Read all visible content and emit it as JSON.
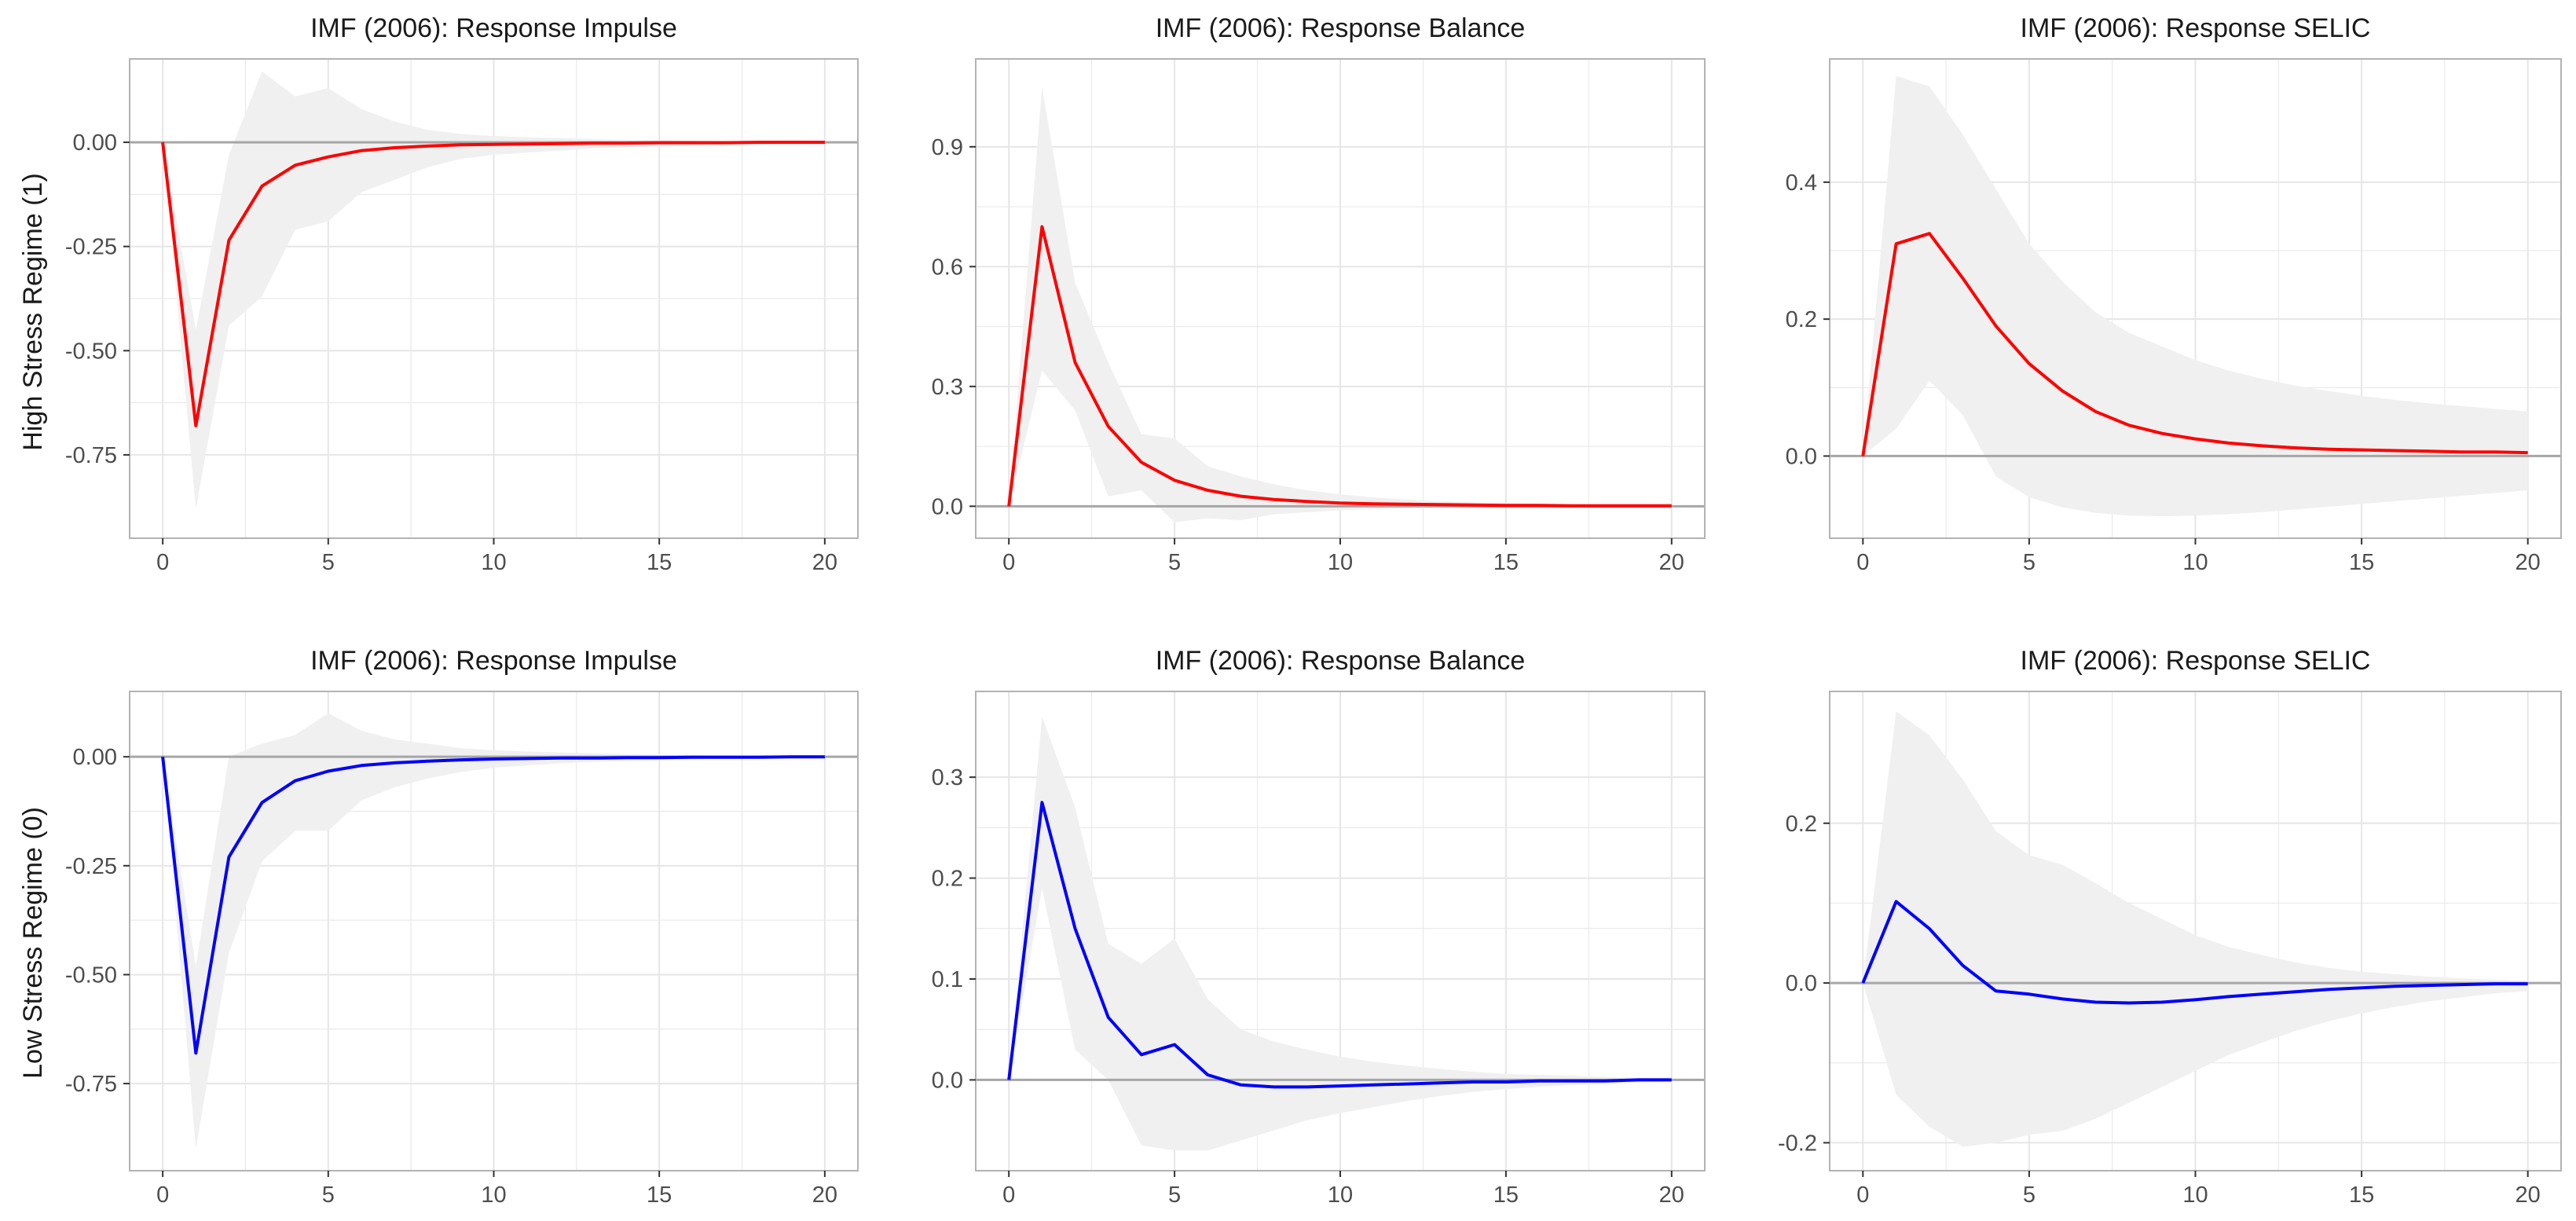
{
  "figure": {
    "row_labels": [
      "High Stress Regime (1)",
      "Low Stress Regime (0)"
    ]
  },
  "colors": {
    "high": "#ff0000",
    "low": "#0000ff",
    "band": "#f0f0f0",
    "zero_line": "#a6a6a6",
    "grid": "#e6e6e6",
    "panel_border": "#b3b3b3"
  },
  "chart_data": [
    {
      "type": "line",
      "row": 0,
      "col": 0,
      "title": "IMF (2006): Response Impulse",
      "xlabel": "",
      "ylabel": "High Stress Regime (1)",
      "color": "high",
      "xlim": [
        -1,
        21
      ],
      "ylim": [
        -0.95,
        0.2
      ],
      "xticks": [
        0,
        5,
        10,
        15,
        20
      ],
      "xtick_labels": [
        "0",
        "5",
        "10",
        "15",
        "20"
      ],
      "yticks": [
        0,
        -0.25,
        -0.5,
        -0.75
      ],
      "ytick_labels": [
        "0.00",
        "-0.25",
        "-0.50",
        "-0.75"
      ],
      "x": [
        0,
        1,
        2,
        3,
        4,
        5,
        6,
        7,
        8,
        9,
        10,
        11,
        12,
        13,
        14,
        15,
        16,
        17,
        18,
        19,
        20
      ],
      "y": [
        0,
        -0.68,
        -0.235,
        -0.105,
        -0.055,
        -0.035,
        -0.02,
        -0.013,
        -0.009,
        -0.006,
        -0.005,
        -0.004,
        -0.003,
        -0.002,
        -0.002,
        -0.001,
        -0.001,
        -0.001,
        0,
        0,
        0
      ],
      "lower": [
        0,
        -0.88,
        -0.44,
        -0.37,
        -0.21,
        -0.19,
        -0.12,
        -0.09,
        -0.06,
        -0.04,
        -0.03,
        -0.025,
        -0.02,
        -0.015,
        -0.012,
        -0.01,
        -0.008,
        -0.006,
        -0.005,
        -0.004,
        -0.003
      ],
      "upper": [
        0,
        -0.45,
        -0.03,
        0.17,
        0.11,
        0.13,
        0.08,
        0.05,
        0.03,
        0.02,
        0.015,
        0.012,
        0.01,
        0.008,
        0.006,
        0.005,
        0.004,
        0.003,
        0.003,
        0.002,
        0.002
      ]
    },
    {
      "type": "line",
      "row": 0,
      "col": 1,
      "title": "IMF (2006): Response Balance",
      "xlabel": "",
      "ylabel": "",
      "color": "high",
      "xlim": [
        -1,
        21
      ],
      "ylim": [
        -0.08,
        1.12
      ],
      "xticks": [
        0,
        5,
        10,
        15,
        20
      ],
      "xtick_labels": [
        "0",
        "5",
        "10",
        "15",
        "20"
      ],
      "yticks": [
        0,
        0.3,
        0.6,
        0.9
      ],
      "ytick_labels": [
        "0.0",
        "0.3",
        "0.6",
        "0.9"
      ],
      "x": [
        0,
        1,
        2,
        3,
        4,
        5,
        6,
        7,
        8,
        9,
        10,
        11,
        12,
        13,
        14,
        15,
        16,
        17,
        18,
        19,
        20
      ],
      "y": [
        0,
        0.7,
        0.36,
        0.2,
        0.11,
        0.065,
        0.04,
        0.025,
        0.017,
        0.012,
        0.008,
        0.006,
        0.005,
        0.004,
        0.003,
        0.002,
        0.002,
        0.001,
        0.001,
        0.001,
        0.001
      ],
      "lower": [
        0,
        0.34,
        0.24,
        0.025,
        0.04,
        -0.04,
        -0.03,
        -0.035,
        -0.02,
        -0.015,
        -0.01,
        -0.008,
        -0.006,
        -0.005,
        -0.004,
        -0.003,
        -0.003,
        -0.002,
        -0.002,
        -0.002,
        -0.001
      ],
      "upper": [
        0,
        1.05,
        0.56,
        0.36,
        0.18,
        0.17,
        0.1,
        0.075,
        0.055,
        0.04,
        0.03,
        0.022,
        0.017,
        0.013,
        0.01,
        0.008,
        0.006,
        0.005,
        0.004,
        0.003,
        0.003
      ]
    },
    {
      "type": "line",
      "row": 0,
      "col": 2,
      "title": "IMF (2006): Response SELIC",
      "xlabel": "",
      "ylabel": "",
      "color": "high",
      "xlim": [
        -1,
        21
      ],
      "ylim": [
        -0.12,
        0.58
      ],
      "xticks": [
        0,
        5,
        10,
        15,
        20
      ],
      "xtick_labels": [
        "0",
        "5",
        "10",
        "15",
        "20"
      ],
      "yticks": [
        0,
        0.2,
        0.4
      ],
      "ytick_labels": [
        "0.0",
        "0.2",
        "0.4"
      ],
      "x": [
        0,
        1,
        2,
        3,
        4,
        5,
        6,
        7,
        8,
        9,
        10,
        11,
        12,
        13,
        14,
        15,
        16,
        17,
        18,
        19,
        20
      ],
      "y": [
        0,
        0.31,
        0.325,
        0.26,
        0.19,
        0.135,
        0.095,
        0.065,
        0.045,
        0.033,
        0.025,
        0.019,
        0.015,
        0.012,
        0.01,
        0.009,
        0.008,
        0.007,
        0.006,
        0.006,
        0.005
      ],
      "lower": [
        0,
        0.04,
        0.11,
        0.06,
        -0.03,
        -0.06,
        -0.075,
        -0.083,
        -0.087,
        -0.088,
        -0.087,
        -0.085,
        -0.082,
        -0.078,
        -0.074,
        -0.07,
        -0.066,
        -0.062,
        -0.058,
        -0.054,
        -0.05
      ],
      "upper": [
        0,
        0.555,
        0.54,
        0.47,
        0.39,
        0.31,
        0.255,
        0.21,
        0.18,
        0.16,
        0.14,
        0.125,
        0.113,
        0.103,
        0.095,
        0.088,
        0.082,
        0.077,
        0.073,
        0.069,
        0.065
      ]
    },
    {
      "type": "line",
      "row": 1,
      "col": 0,
      "title": "IMF (2006): Response Impulse",
      "xlabel": "",
      "ylabel": "Low Stress Regime (0)",
      "color": "low",
      "xlim": [
        -1,
        21
      ],
      "ylim": [
        -0.95,
        0.15
      ],
      "xticks": [
        0,
        5,
        10,
        15,
        20
      ],
      "xtick_labels": [
        "0",
        "5",
        "10",
        "15",
        "20"
      ],
      "yticks": [
        0,
        -0.25,
        -0.5,
        -0.75
      ],
      "ytick_labels": [
        "0.00",
        "-0.25",
        "-0.50",
        "-0.75"
      ],
      "x": [
        0,
        1,
        2,
        3,
        4,
        5,
        6,
        7,
        8,
        9,
        10,
        11,
        12,
        13,
        14,
        15,
        16,
        17,
        18,
        19,
        20
      ],
      "y": [
        0,
        -0.68,
        -0.23,
        -0.105,
        -0.055,
        -0.033,
        -0.02,
        -0.014,
        -0.01,
        -0.007,
        -0.005,
        -0.004,
        -0.003,
        -0.003,
        -0.002,
        -0.002,
        -0.001,
        -0.001,
        -0.001,
        0,
        0
      ],
      "lower": [
        0,
        -0.9,
        -0.45,
        -0.24,
        -0.17,
        -0.17,
        -0.1,
        -0.07,
        -0.05,
        -0.035,
        -0.025,
        -0.02,
        -0.015,
        -0.012,
        -0.01,
        -0.008,
        -0.006,
        -0.005,
        -0.004,
        -0.003,
        -0.002
      ],
      "upper": [
        0,
        -0.48,
        0,
        0.03,
        0.05,
        0.1,
        0.06,
        0.04,
        0.03,
        0.02,
        0.015,
        0.012,
        0.01,
        0.008,
        0.006,
        0.005,
        0.004,
        0.003,
        0.003,
        0.002,
        0.002
      ]
    },
    {
      "type": "line",
      "row": 1,
      "col": 1,
      "title": "IMF (2006): Response Balance",
      "xlabel": "",
      "ylabel": "",
      "color": "low",
      "xlim": [
        -1,
        21
      ],
      "ylim": [
        -0.09,
        0.385
      ],
      "xticks": [
        0,
        5,
        10,
        15,
        20
      ],
      "xtick_labels": [
        "0",
        "5",
        "10",
        "15",
        "20"
      ],
      "yticks": [
        0,
        0.1,
        0.2,
        0.3
      ],
      "ytick_labels": [
        "0.0",
        "0.1",
        "0.2",
        "0.3"
      ],
      "x": [
        0,
        1,
        2,
        3,
        4,
        5,
        6,
        7,
        8,
        9,
        10,
        11,
        12,
        13,
        14,
        15,
        16,
        17,
        18,
        19,
        20
      ],
      "y": [
        0,
        0.275,
        0.15,
        0.062,
        0.025,
        0.035,
        0.005,
        -0.005,
        -0.007,
        -0.007,
        -0.006,
        -0.005,
        -0.004,
        -0.003,
        -0.002,
        -0.002,
        -0.001,
        -0.001,
        -0.001,
        0,
        0
      ],
      "lower": [
        0,
        0.19,
        0.03,
        0,
        -0.065,
        -0.07,
        -0.07,
        -0.06,
        -0.05,
        -0.04,
        -0.033,
        -0.027,
        -0.021,
        -0.016,
        -0.012,
        -0.009,
        -0.007,
        -0.005,
        -0.004,
        -0.003,
        -0.002
      ],
      "upper": [
        0,
        0.36,
        0.27,
        0.135,
        0.115,
        0.14,
        0.08,
        0.05,
        0.038,
        0.03,
        0.023,
        0.018,
        0.014,
        0.011,
        0.008,
        0.006,
        0.005,
        0.004,
        0.003,
        0.002,
        0.002
      ]
    },
    {
      "type": "line",
      "row": 1,
      "col": 2,
      "title": "IMF (2006): Response SELIC",
      "xlabel": "",
      "ylabel": "",
      "color": "low",
      "xlim": [
        -1,
        21
      ],
      "ylim": [
        -0.235,
        0.365
      ],
      "xticks": [
        0,
        5,
        10,
        15,
        20
      ],
      "xtick_labels": [
        "0",
        "5",
        "10",
        "15",
        "20"
      ],
      "yticks": [
        -0.2,
        0,
        0.2
      ],
      "ytick_labels": [
        "-0.2",
        "0.0",
        "0.2"
      ],
      "x": [
        0,
        1,
        2,
        3,
        4,
        5,
        6,
        7,
        8,
        9,
        10,
        11,
        12,
        13,
        14,
        15,
        16,
        17,
        18,
        19,
        20
      ],
      "y": [
        0,
        0.102,
        0.068,
        0.022,
        -0.01,
        -0.014,
        -0.02,
        -0.024,
        -0.025,
        -0.024,
        -0.021,
        -0.017,
        -0.014,
        -0.011,
        -0.008,
        -0.006,
        -0.004,
        -0.003,
        -0.002,
        -0.001,
        -0.001
      ],
      "lower": [
        0,
        -0.14,
        -0.18,
        -0.205,
        -0.2,
        -0.19,
        -0.185,
        -0.17,
        -0.15,
        -0.13,
        -0.11,
        -0.09,
        -0.075,
        -0.06,
        -0.048,
        -0.038,
        -0.03,
        -0.023,
        -0.018,
        -0.013,
        -0.01
      ],
      "upper": [
        0,
        0.34,
        0.31,
        0.255,
        0.19,
        0.16,
        0.148,
        0.125,
        0.1,
        0.08,
        0.06,
        0.045,
        0.035,
        0.026,
        0.019,
        0.014,
        0.011,
        0.008,
        0.006,
        0.004,
        0.003
      ]
    }
  ]
}
